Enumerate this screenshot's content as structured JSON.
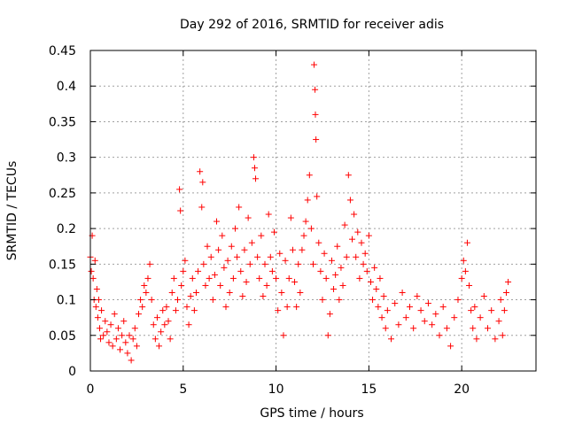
{
  "chart_data": {
    "type": "scatter",
    "title": "Day 292 of 2016, SRMTID for receiver adis",
    "xlabel": "GPS time / hours",
    "ylabel": "SRMTID / TECUs",
    "xlim": [
      0,
      24
    ],
    "ylim": [
      0,
      0.45
    ],
    "x_ticks": [
      0,
      5,
      10,
      15,
      20
    ],
    "x_tick_labels": [
      "0",
      "5",
      "10",
      "15",
      "20"
    ],
    "y_ticks": [
      0,
      0.05,
      0.1,
      0.15,
      0.2,
      0.25,
      0.3,
      0.35,
      0.4,
      0.45
    ],
    "y_tick_labels": [
      "0",
      "0.05",
      "0.1",
      "0.15",
      "0.2",
      "0.25",
      "0.3",
      "0.35",
      "0.4",
      "0.45"
    ],
    "grid": true,
    "marker": "+",
    "series": [
      {
        "name": "SRMTID",
        "color": "#ff0000",
        "points": [
          [
            0.0,
            0.16
          ],
          [
            0.05,
            0.14
          ],
          [
            0.1,
            0.19
          ],
          [
            0.15,
            0.13
          ],
          [
            0.2,
            0.1
          ],
          [
            0.25,
            0.155
          ],
          [
            0.3,
            0.09
          ],
          [
            0.35,
            0.115
          ],
          [
            0.4,
            0.075
          ],
          [
            0.45,
            0.1
          ],
          [
            0.5,
            0.06
          ],
          [
            0.55,
            0.045
          ],
          [
            0.6,
            0.085
          ],
          [
            0.7,
            0.05
          ],
          [
            0.8,
            0.07
          ],
          [
            0.9,
            0.055
          ],
          [
            1.0,
            0.04
          ],
          [
            1.1,
            0.065
          ],
          [
            1.2,
            0.035
          ],
          [
            1.3,
            0.08
          ],
          [
            1.4,
            0.045
          ],
          [
            1.5,
            0.06
          ],
          [
            1.6,
            0.03
          ],
          [
            1.7,
            0.05
          ],
          [
            1.8,
            0.07
          ],
          [
            1.9,
            0.04
          ],
          [
            2.0,
            0.025
          ],
          [
            2.1,
            0.05
          ],
          [
            2.2,
            0.015
          ],
          [
            2.3,
            0.045
          ],
          [
            2.4,
            0.06
          ],
          [
            2.5,
            0.035
          ],
          [
            2.6,
            0.08
          ],
          [
            2.7,
            0.1
          ],
          [
            2.8,
            0.09
          ],
          [
            2.9,
            0.12
          ],
          [
            3.0,
            0.11
          ],
          [
            3.1,
            0.13
          ],
          [
            3.2,
            0.15
          ],
          [
            3.3,
            0.1
          ],
          [
            3.4,
            0.065
          ],
          [
            3.5,
            0.045
          ],
          [
            3.6,
            0.075
          ],
          [
            3.7,
            0.035
          ],
          [
            3.8,
            0.055
          ],
          [
            3.9,
            0.085
          ],
          [
            4.0,
            0.065
          ],
          [
            4.1,
            0.09
          ],
          [
            4.2,
            0.07
          ],
          [
            4.3,
            0.045
          ],
          [
            4.4,
            0.11
          ],
          [
            4.5,
            0.13
          ],
          [
            4.6,
            0.085
          ],
          [
            4.7,
            0.1
          ],
          [
            4.8,
            0.255
          ],
          [
            4.85,
            0.225
          ],
          [
            4.9,
            0.12
          ],
          [
            5.0,
            0.14
          ],
          [
            5.1,
            0.155
          ],
          [
            5.2,
            0.09
          ],
          [
            5.3,
            0.065
          ],
          [
            5.4,
            0.105
          ],
          [
            5.5,
            0.13
          ],
          [
            5.6,
            0.085
          ],
          [
            5.7,
            0.11
          ],
          [
            5.8,
            0.14
          ],
          [
            5.9,
            0.28
          ],
          [
            6.0,
            0.23
          ],
          [
            6.05,
            0.265
          ],
          [
            6.1,
            0.15
          ],
          [
            6.2,
            0.12
          ],
          [
            6.3,
            0.175
          ],
          [
            6.4,
            0.13
          ],
          [
            6.5,
            0.16
          ],
          [
            6.6,
            0.1
          ],
          [
            6.7,
            0.135
          ],
          [
            6.8,
            0.21
          ],
          [
            6.9,
            0.17
          ],
          [
            7.0,
            0.12
          ],
          [
            7.1,
            0.19
          ],
          [
            7.2,
            0.145
          ],
          [
            7.3,
            0.09
          ],
          [
            7.4,
            0.155
          ],
          [
            7.5,
            0.11
          ],
          [
            7.6,
            0.175
          ],
          [
            7.7,
            0.13
          ],
          [
            7.8,
            0.2
          ],
          [
            7.9,
            0.16
          ],
          [
            8.0,
            0.23
          ],
          [
            8.1,
            0.14
          ],
          [
            8.2,
            0.105
          ],
          [
            8.3,
            0.17
          ],
          [
            8.4,
            0.125
          ],
          [
            8.5,
            0.215
          ],
          [
            8.6,
            0.15
          ],
          [
            8.7,
            0.18
          ],
          [
            8.8,
            0.3
          ],
          [
            8.85,
            0.285
          ],
          [
            8.9,
            0.27
          ],
          [
            9.0,
            0.16
          ],
          [
            9.1,
            0.13
          ],
          [
            9.2,
            0.19
          ],
          [
            9.3,
            0.105
          ],
          [
            9.4,
            0.15
          ],
          [
            9.5,
            0.12
          ],
          [
            9.6,
            0.22
          ],
          [
            9.7,
            0.16
          ],
          [
            9.8,
            0.14
          ],
          [
            9.9,
            0.195
          ],
          [
            10.0,
            0.13
          ],
          [
            10.1,
            0.085
          ],
          [
            10.2,
            0.165
          ],
          [
            10.3,
            0.11
          ],
          [
            10.4,
            0.05
          ],
          [
            10.5,
            0.155
          ],
          [
            10.6,
            0.09
          ],
          [
            10.7,
            0.13
          ],
          [
            10.8,
            0.215
          ],
          [
            10.9,
            0.17
          ],
          [
            11.0,
            0.125
          ],
          [
            11.1,
            0.09
          ],
          [
            11.2,
            0.15
          ],
          [
            11.3,
            0.11
          ],
          [
            11.4,
            0.17
          ],
          [
            11.5,
            0.19
          ],
          [
            11.6,
            0.21
          ],
          [
            11.7,
            0.24
          ],
          [
            11.8,
            0.275
          ],
          [
            11.9,
            0.2
          ],
          [
            12.0,
            0.15
          ],
          [
            12.05,
            0.43
          ],
          [
            12.1,
            0.395
          ],
          [
            12.12,
            0.36
          ],
          [
            12.15,
            0.325
          ],
          [
            12.2,
            0.245
          ],
          [
            12.3,
            0.18
          ],
          [
            12.4,
            0.14
          ],
          [
            12.5,
            0.1
          ],
          [
            12.6,
            0.165
          ],
          [
            12.7,
            0.13
          ],
          [
            12.8,
            0.05
          ],
          [
            12.9,
            0.08
          ],
          [
            13.0,
            0.155
          ],
          [
            13.1,
            0.115
          ],
          [
            13.2,
            0.135
          ],
          [
            13.3,
            0.175
          ],
          [
            13.4,
            0.1
          ],
          [
            13.5,
            0.145
          ],
          [
            13.6,
            0.12
          ],
          [
            13.7,
            0.205
          ],
          [
            13.8,
            0.16
          ],
          [
            13.9,
            0.275
          ],
          [
            14.0,
            0.24
          ],
          [
            14.1,
            0.185
          ],
          [
            14.2,
            0.22
          ],
          [
            14.3,
            0.16
          ],
          [
            14.4,
            0.195
          ],
          [
            14.5,
            0.13
          ],
          [
            14.6,
            0.18
          ],
          [
            14.7,
            0.15
          ],
          [
            14.8,
            0.165
          ],
          [
            14.9,
            0.14
          ],
          [
            15.0,
            0.19
          ],
          [
            15.1,
            0.125
          ],
          [
            15.2,
            0.1
          ],
          [
            15.3,
            0.145
          ],
          [
            15.4,
            0.115
          ],
          [
            15.5,
            0.09
          ],
          [
            15.6,
            0.13
          ],
          [
            15.7,
            0.075
          ],
          [
            15.8,
            0.105
          ],
          [
            15.9,
            0.06
          ],
          [
            16.0,
            0.085
          ],
          [
            16.2,
            0.045
          ],
          [
            16.4,
            0.095
          ],
          [
            16.6,
            0.065
          ],
          [
            16.8,
            0.11
          ],
          [
            17.0,
            0.075
          ],
          [
            17.2,
            0.09
          ],
          [
            17.4,
            0.06
          ],
          [
            17.6,
            0.105
          ],
          [
            17.8,
            0.085
          ],
          [
            18.0,
            0.07
          ],
          [
            18.2,
            0.095
          ],
          [
            18.4,
            0.065
          ],
          [
            18.6,
            0.08
          ],
          [
            18.8,
            0.05
          ],
          [
            19.0,
            0.09
          ],
          [
            19.2,
            0.06
          ],
          [
            19.4,
            0.035
          ],
          [
            19.6,
            0.075
          ],
          [
            19.8,
            0.1
          ],
          [
            20.0,
            0.13
          ],
          [
            20.1,
            0.155
          ],
          [
            20.2,
            0.14
          ],
          [
            20.3,
            0.18
          ],
          [
            20.4,
            0.12
          ],
          [
            20.5,
            0.085
          ],
          [
            20.6,
            0.06
          ],
          [
            20.7,
            0.09
          ],
          [
            20.8,
            0.045
          ],
          [
            21.0,
            0.075
          ],
          [
            21.2,
            0.105
          ],
          [
            21.4,
            0.06
          ],
          [
            21.6,
            0.085
          ],
          [
            21.8,
            0.045
          ],
          [
            22.0,
            0.07
          ],
          [
            22.1,
            0.1
          ],
          [
            22.2,
            0.05
          ],
          [
            22.3,
            0.085
          ],
          [
            22.4,
            0.11
          ],
          [
            22.5,
            0.125
          ]
        ]
      }
    ]
  }
}
